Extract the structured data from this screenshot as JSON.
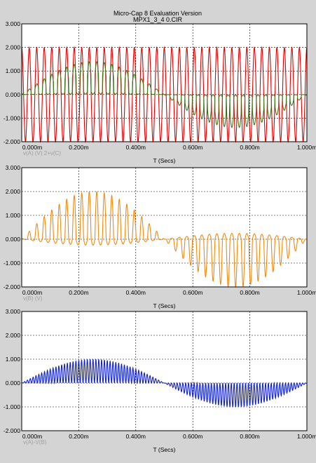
{
  "window": {
    "title": "Micro-Cap 8 Evaluation Version",
    "subtitle": "MPX1_3_4 0.CIR"
  },
  "colors": {
    "background": "#d4d4d4",
    "plot_bg": "#ffffff",
    "grid": "#000000",
    "carrier": "#e00000",
    "mixed": "#3c7a1a",
    "vb": "#f08a10",
    "diff": "#1020d0"
  },
  "chart_data": [
    {
      "type": "line",
      "x_unit": "ms",
      "xlabel": "T (Secs)",
      "ylim": [
        -2.0,
        3.0
      ],
      "xlim": [
        0,
        1.0
      ],
      "y_ticks": [
        "3.000",
        "2.000",
        "1.000",
        "0.000",
        "-1.000",
        "-2.000"
      ],
      "x_ticks": [
        "0.000m",
        "0.200m",
        "0.400m",
        "0.600m",
        "0.800m",
        "1.000m"
      ],
      "grid": true,
      "legend": [
        "v(A) (V)",
        "2+v(C)"
      ],
      "series": [
        {
          "name": "v(A) (V)",
          "color_key": "carrier",
          "kind": "carrier_sine",
          "amplitude": 2.0,
          "offset": 0.0,
          "frequency_khz": 38
        },
        {
          "name": "2+v(C)",
          "color_key": "mixed",
          "kind": "mpx_composite",
          "peak": 2.0,
          "trough": -2.0
        }
      ]
    },
    {
      "type": "line",
      "x_unit": "ms",
      "xlabel": "T (Secs)",
      "ylim": [
        -2.0,
        3.0
      ],
      "xlim": [
        0,
        1.0
      ],
      "y_ticks": [
        "3.000",
        "2.000",
        "1.000",
        "0.000",
        "-1.000",
        "-2.000"
      ],
      "x_ticks": [
        "0.000m",
        "0.200m",
        "0.400m",
        "0.600m",
        "0.800m",
        "1.000m"
      ],
      "grid": true,
      "legend": [
        "v(B) (V)"
      ],
      "series": [
        {
          "name": "v(B) (V)",
          "color_key": "vb",
          "kind": "rectified_envelope",
          "peak": 2.0,
          "trough": -2.0
        }
      ]
    },
    {
      "type": "line",
      "x_unit": "ms",
      "xlabel": "T (Secs)",
      "ylim": [
        -2.0,
        3.0
      ],
      "xlim": [
        0,
        1.0
      ],
      "y_ticks": [
        "3.000",
        "2.000",
        "1.000",
        "0.000",
        "-1.000",
        "-2.000"
      ],
      "x_ticks": [
        "0.000m",
        "0.200m",
        "0.400m",
        "0.600m",
        "0.800m",
        "1.000m"
      ],
      "grid": true,
      "legend": [
        "v(A)-V(B)"
      ],
      "series": [
        {
          "name": "v(A)-V(B)",
          "color_key": "diff",
          "kind": "am_envelope",
          "peak": 1.0,
          "trough": -1.0
        }
      ]
    }
  ]
}
